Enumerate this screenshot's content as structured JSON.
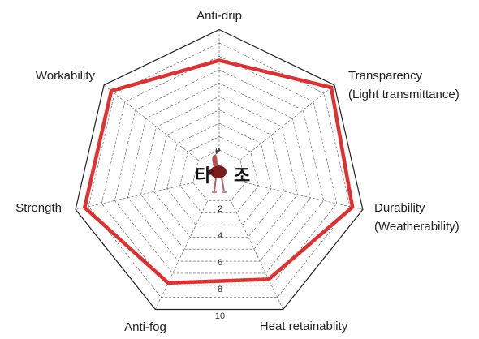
{
  "chart_data": {
    "type": "radar",
    "axes": [
      {
        "label_lines": [
          "Anti-drip"
        ]
      },
      {
        "label_lines": [
          "Transparency",
          "(Light transmittance)"
        ]
      },
      {
        "label_lines": [
          "Durability",
          "(Weatherability)"
        ]
      },
      {
        "label_lines": [
          "Heat retainablity"
        ]
      },
      {
        "label_lines": [
          "Anti-fog"
        ]
      },
      {
        "label_lines": [
          "Strength"
        ]
      },
      {
        "label_lines": [
          "Workability"
        ]
      }
    ],
    "rlim": [
      0,
      10
    ],
    "ticks": [
      2,
      4,
      6,
      8,
      10
    ],
    "gridlines": [
      2,
      3,
      4,
      5,
      6,
      7,
      8,
      9,
      10,
      11
    ],
    "series": [
      {
        "values": [
          8.7,
          10.7,
          10.2,
          8.5,
          8.8,
          10.3,
          10.3
        ],
        "color": "#e03030"
      }
    ]
  },
  "logo": {
    "left_char": "타",
    "right_char": "조"
  }
}
